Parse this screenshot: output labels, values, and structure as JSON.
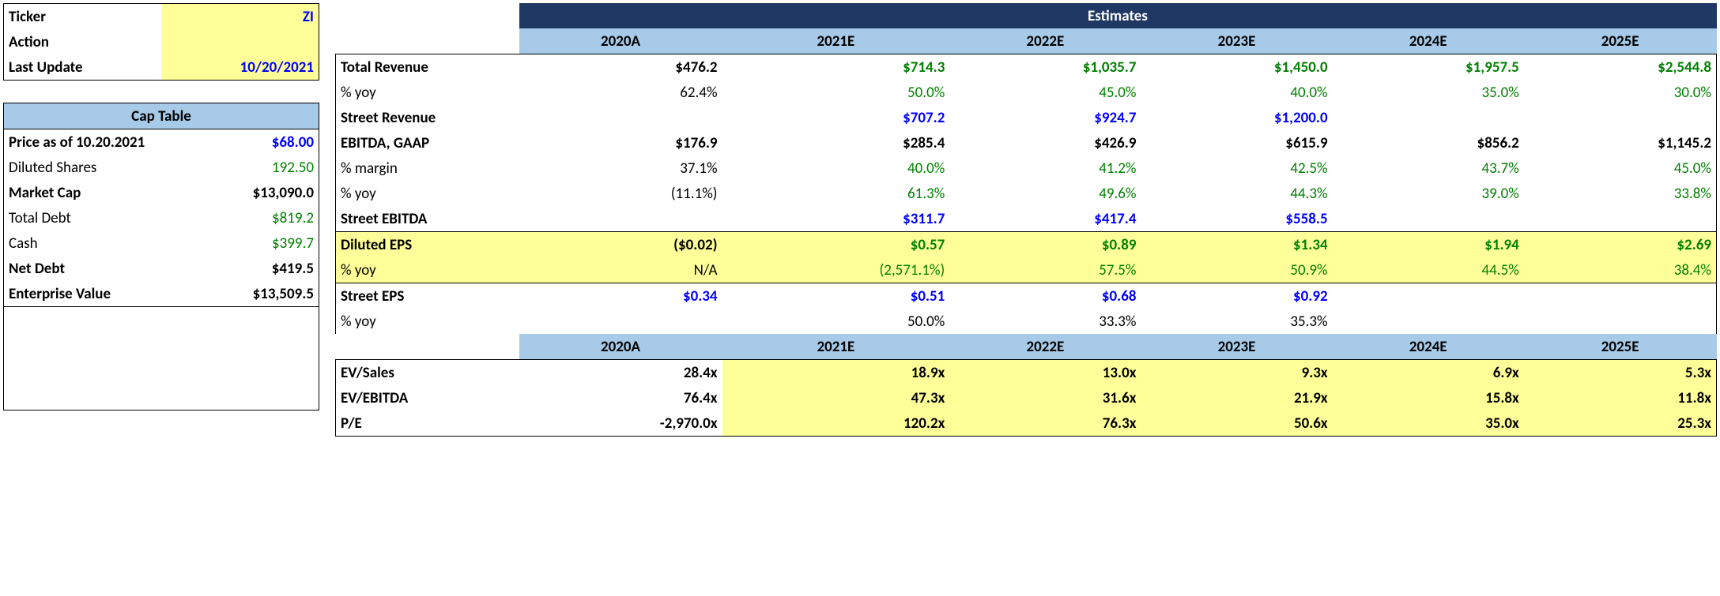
{
  "left": {
    "ticker_label": "Ticker",
    "ticker_value": "ZI",
    "action_label": "Action",
    "action_value": "",
    "last_update_label": "Last Update",
    "last_update_value": "10/20/2021",
    "cap_table_header": "Cap Table",
    "price_label": "Price as of 10.20.2021",
    "price_value": "$68.00",
    "diluted_shares_label": "Diluted Shares",
    "diluted_shares_value": "192.50",
    "market_cap_label": "Market Cap",
    "market_cap_value": "$13,090.0",
    "total_debt_label": "Total Debt",
    "total_debt_value": "$819.2",
    "cash_label": "Cash",
    "cash_value": "$399.7",
    "net_debt_label": "Net Debt",
    "net_debt_value": "$419.5",
    "ev_label": "Enterprise Value",
    "ev_value": "$13,509.5"
  },
  "right": {
    "estimates_header": "Estimates",
    "years": [
      "2020A",
      "2021E",
      "2022E",
      "2023E",
      "2024E",
      "2025E"
    ],
    "rows": {
      "total_revenue": {
        "label": "Total Revenue",
        "vals": [
          "$476.2",
          "$714.3",
          "$1,035.7",
          "$1,450.0",
          "$1,957.5",
          "$2,544.8"
        ],
        "colors": [
          "b",
          "g",
          "g",
          "g",
          "g",
          "g"
        ],
        "bold": true
      },
      "rev_yoy": {
        "label": "% yoy",
        "vals": [
          "62.4%",
          "50.0%",
          "45.0%",
          "40.0%",
          "35.0%",
          "30.0%"
        ],
        "colors": [
          "b",
          "g",
          "g",
          "g",
          "g",
          "g"
        ]
      },
      "street_rev": {
        "label": "Street Revenue",
        "vals": [
          "",
          "$707.2",
          "$924.7",
          "$1,200.0",
          "",
          ""
        ],
        "colors": [
          "",
          "bl",
          "bl",
          "bl",
          "",
          ""
        ],
        "bold": true
      },
      "ebitda": {
        "label": "EBITDA, GAAP",
        "vals": [
          "$176.9",
          "$285.4",
          "$426.9",
          "$615.9",
          "$856.2",
          "$1,145.2"
        ],
        "colors": [
          "b",
          "b",
          "b",
          "b",
          "b",
          "b"
        ],
        "bold": true
      },
      "ebitda_margin": {
        "label": "% margin",
        "vals": [
          "37.1%",
          "40.0%",
          "41.2%",
          "42.5%",
          "43.7%",
          "45.0%"
        ],
        "colors": [
          "b",
          "g",
          "g",
          "g",
          "g",
          "g"
        ]
      },
      "ebitda_yoy": {
        "label": "% yoy",
        "vals": [
          "(11.1%)",
          "61.3%",
          "49.6%",
          "44.3%",
          "39.0%",
          "33.8%"
        ],
        "colors": [
          "b",
          "g",
          "g",
          "g",
          "g",
          "g"
        ]
      },
      "street_ebitda": {
        "label": "Street EBITDA",
        "vals": [
          "",
          "$311.7",
          "$417.4",
          "$558.5",
          "",
          ""
        ],
        "colors": [
          "",
          "bl",
          "bl",
          "bl",
          "",
          ""
        ],
        "bold": true
      },
      "diluted_eps": {
        "label": "Diluted EPS",
        "vals": [
          "($0.02)",
          "$0.57",
          "$0.89",
          "$1.34",
          "$1.94",
          "$2.69"
        ],
        "colors": [
          "b",
          "g",
          "g",
          "g",
          "g",
          "g"
        ],
        "bold": true,
        "hl": true
      },
      "eps_yoy": {
        "label": "% yoy",
        "vals": [
          "N/A",
          "(2,571.1%)",
          "57.5%",
          "50.9%",
          "44.5%",
          "38.4%"
        ],
        "colors": [
          "b",
          "g",
          "g",
          "g",
          "g",
          "g"
        ],
        "hl": true
      },
      "street_eps": {
        "label": "Street EPS",
        "vals": [
          "$0.34",
          "$0.51",
          "$0.68",
          "$0.92",
          "",
          ""
        ],
        "colors": [
          "bl",
          "bl",
          "bl",
          "bl",
          "",
          ""
        ],
        "bold": true
      },
      "street_eps_yoy": {
        "label": "% yoy",
        "vals": [
          "",
          "50.0%",
          "33.3%",
          "35.3%",
          "",
          ""
        ],
        "colors": [
          "",
          "b",
          "b",
          "b",
          "",
          ""
        ]
      },
      "ev_sales": {
        "label": "EV/Sales",
        "vals": [
          "28.4x",
          "18.9x",
          "13.0x",
          "9.3x",
          "6.9x",
          "5.3x"
        ],
        "bold": true,
        "hlcols": [
          1,
          2,
          3,
          4,
          5
        ]
      },
      "ev_ebitda": {
        "label": "EV/EBITDA",
        "vals": [
          "76.4x",
          "47.3x",
          "31.6x",
          "21.9x",
          "15.8x",
          "11.8x"
        ],
        "bold": true,
        "hlcols": [
          1,
          2,
          3,
          4,
          5
        ]
      },
      "pe": {
        "label": "P/E",
        "vals": [
          "-2,970.0x",
          "120.2x",
          "76.3x",
          "50.6x",
          "35.0x",
          "25.3x"
        ],
        "bold": true,
        "hlcols": [
          1,
          2,
          3,
          4,
          5
        ]
      }
    }
  },
  "colors": {
    "navy": "#203864",
    "lightblue": "#a6cae8",
    "yellow": "#ffff99",
    "blue_text": "#0000ff",
    "green_text": "#008000"
  }
}
